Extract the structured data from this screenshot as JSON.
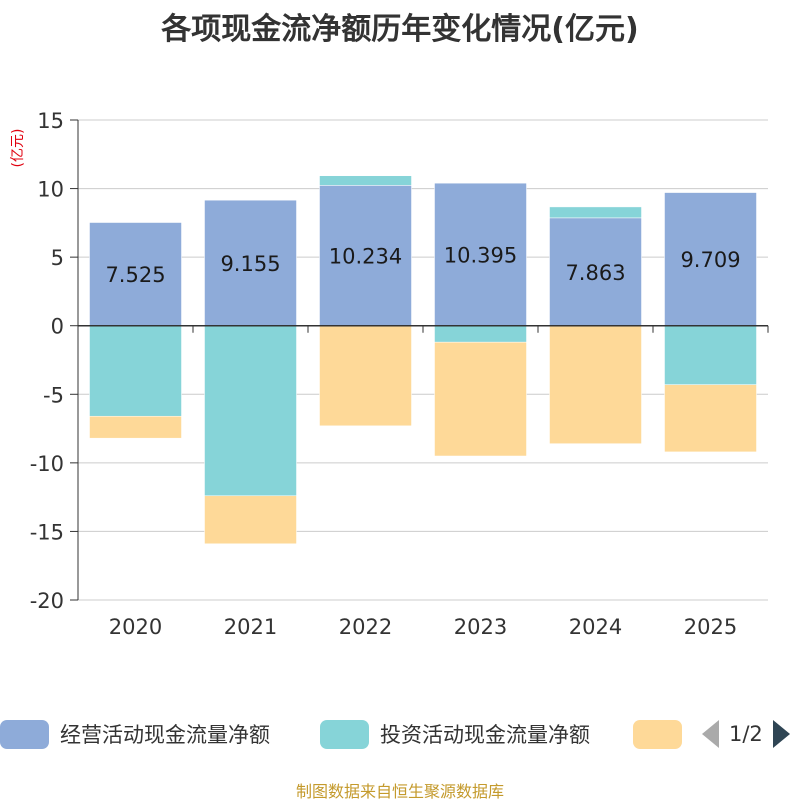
{
  "chart_data": {
    "type": "bar",
    "stacked": true,
    "title": "各项现金流净额历年变化情况(亿元)",
    "ylabel": "(亿元)",
    "categories": [
      "2020",
      "2021",
      "2022",
      "2023",
      "2024",
      "2025"
    ],
    "ylim": [
      -20,
      15
    ],
    "yticks": [
      15,
      10,
      5,
      0,
      -5,
      -10,
      -15,
      -20
    ],
    "series": [
      {
        "name": "经营活动现金流量净额",
        "color": "#8eabd9",
        "values": [
          7.525,
          9.155,
          10.234,
          10.395,
          7.863,
          9.709
        ],
        "labels": [
          "7.525",
          "9.155",
          "10.234",
          "10.395",
          "7.863",
          "9.709"
        ]
      },
      {
        "name": "投资活动现金流量净额",
        "color": "#86d4d8",
        "values": [
          -6.6,
          -12.4,
          0.7,
          -1.2,
          0.8,
          -4.3
        ]
      },
      {
        "name": "",
        "color": "#fed998",
        "values": [
          -1.6,
          -3.5,
          -7.3,
          -8.3,
          -8.6,
          -4.9
        ]
      }
    ]
  },
  "legend": {
    "items": [
      {
        "label": "经营活动现金流量净额",
        "color": "#8eabd9"
      },
      {
        "label": "投资活动现金流量净额",
        "color": "#86d4d8"
      },
      {
        "label": "",
        "color": "#fed998"
      }
    ],
    "page_text": "1/2"
  },
  "footer": "制图数据来自恒生聚源数据库"
}
